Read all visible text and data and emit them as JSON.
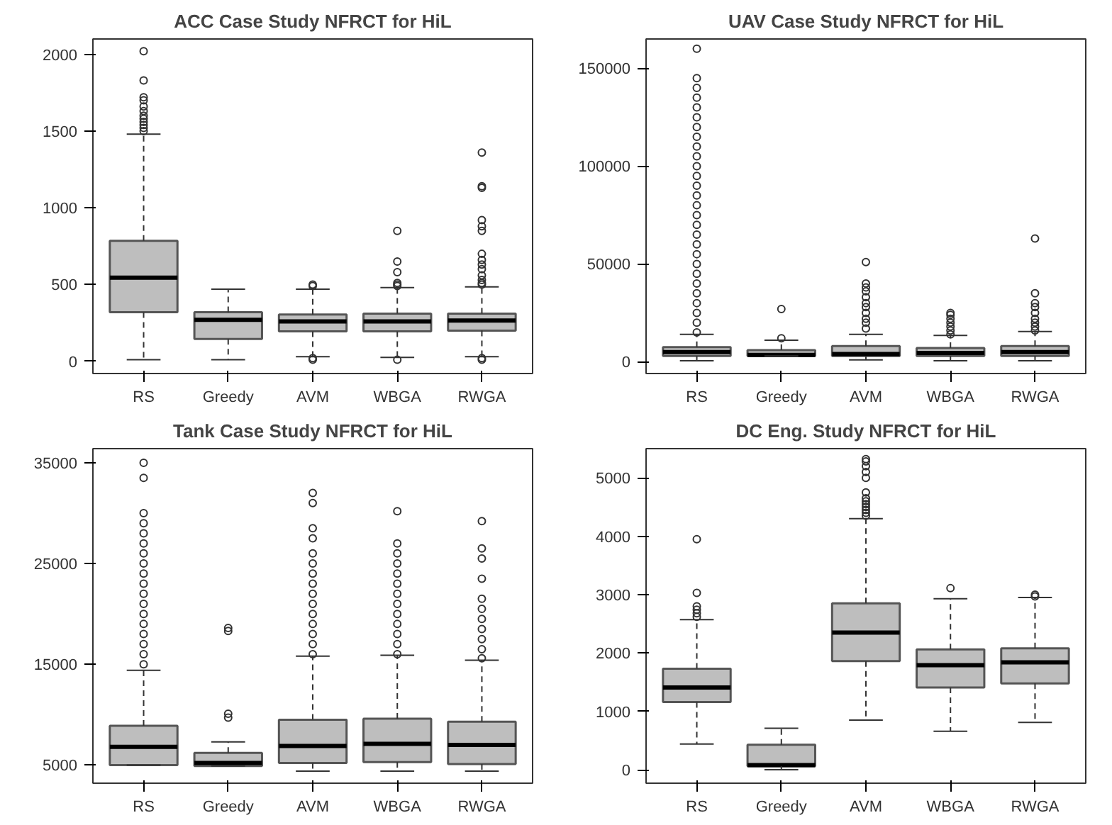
{
  "chart_data": [
    {
      "type": "box",
      "title": "ACC Case Study NFRCT for HiL",
      "categories": [
        "RS",
        "Greedy",
        "AVM",
        "WBGA",
        "RWGA"
      ],
      "color": "#bebebe",
      "ylim": [
        -80,
        2100
      ],
      "yticks": [
        0,
        500,
        1000,
        1500,
        2000
      ],
      "boxes": [
        {
          "low": 10,
          "q1": 320,
          "median": 545,
          "q3": 785,
          "high": 1480,
          "outliers": [
            1500,
            1520,
            1540,
            1560,
            1580,
            1600,
            1630,
            1660,
            1700,
            1720,
            1830,
            2020
          ]
        },
        {
          "low": 10,
          "q1": 145,
          "median": 270,
          "q3": 320,
          "high": 470
        },
        {
          "low": 30,
          "q1": 195,
          "median": 260,
          "q3": 305,
          "high": 470,
          "outliers": [
            10,
            20,
            490,
            500
          ]
        },
        {
          "low": 25,
          "q1": 195,
          "median": 260,
          "q3": 310,
          "high": 480,
          "outliers": [
            10,
            490,
            500,
            510,
            580,
            650,
            850
          ]
        },
        {
          "low": 30,
          "q1": 200,
          "median": 265,
          "q3": 310,
          "high": 485,
          "outliers": [
            10,
            20,
            500,
            510,
            530,
            560,
            600,
            630,
            660,
            700,
            850,
            880,
            920,
            1130,
            1140,
            1360
          ]
        }
      ]
    },
    {
      "type": "box",
      "title": "UAV Case Study NFRCT for HiL",
      "categories": [
        "RS",
        "Greedy",
        "AVM",
        "WBGA",
        "RWGA"
      ],
      "color": "#bebebe",
      "ylim": [
        -6000,
        165000
      ],
      "yticks": [
        0,
        50000,
        100000,
        150000
      ],
      "boxes": [
        {
          "low": 500,
          "q1": 3000,
          "median": 5000,
          "q3": 7500,
          "high": 14000,
          "outliers": [
            15000,
            20000,
            25000,
            30000,
            35000,
            40000,
            45000,
            50000,
            55000,
            60000,
            65000,
            70000,
            75000,
            80000,
            85000,
            90000,
            95000,
            100000,
            105000,
            110000,
            115000,
            120000,
            125000,
            130000,
            135000,
            140000,
            145000,
            160000
          ]
        },
        {
          "low": 3000,
          "q1": 3000,
          "median": 3500,
          "q3": 6000,
          "high": 11000,
          "outliers": [
            12000,
            27000
          ]
        },
        {
          "low": 1000,
          "q1": 3000,
          "median": 4000,
          "q3": 8000,
          "high": 14000,
          "outliers": [
            17000,
            20000,
            22000,
            25000,
            28000,
            30000,
            33000,
            36000,
            38000,
            40000,
            51000
          ]
        },
        {
          "low": 500,
          "q1": 3000,
          "median": 4500,
          "q3": 7000,
          "high": 13500,
          "outliers": [
            14000,
            16000,
            18000,
            20000,
            22000,
            24000,
            25000
          ]
        },
        {
          "low": 500,
          "q1": 3000,
          "median": 5000,
          "q3": 8000,
          "high": 15500,
          "outliers": [
            16000,
            18000,
            20000,
            22000,
            25000,
            28000,
            30000,
            35000,
            63000
          ]
        }
      ]
    },
    {
      "type": "box",
      "title": "Tank Case Study NFRCT for HiL",
      "categories": [
        "RS",
        "Greedy",
        "AVM",
        "WBGA",
        "RWGA"
      ],
      "color": "#bebebe",
      "ylim": [
        3200,
        36400
      ],
      "yticks": [
        5000,
        15000,
        25000,
        35000
      ],
      "boxes": [
        {
          "low": 5000,
          "q1": 5000,
          "median": 6800,
          "q3": 8900,
          "high": 14400,
          "outliers": [
            15000,
            16000,
            17000,
            18000,
            19000,
            20000,
            21000,
            22000,
            23000,
            24000,
            25000,
            26000,
            27000,
            28000,
            29000,
            30000,
            33500,
            35000
          ]
        },
        {
          "low": 4900,
          "q1": 4900,
          "median": 5200,
          "q3": 6200,
          "high": 7300,
          "outliers": [
            9700,
            10100,
            18300,
            18600
          ]
        },
        {
          "low": 4400,
          "q1": 5200,
          "median": 6900,
          "q3": 9500,
          "high": 15800,
          "outliers": [
            16000,
            17000,
            18000,
            19000,
            20000,
            21000,
            22000,
            23000,
            24000,
            25000,
            26000,
            27500,
            28500,
            31000,
            32000
          ]
        },
        {
          "low": 4400,
          "q1": 5300,
          "median": 7100,
          "q3": 9600,
          "high": 15900,
          "outliers": [
            16000,
            17000,
            18000,
            19000,
            20000,
            21000,
            22000,
            23000,
            24000,
            25000,
            26000,
            27000,
            30200
          ]
        },
        {
          "low": 4400,
          "q1": 5100,
          "median": 7000,
          "q3": 9300,
          "high": 15400,
          "outliers": [
            15600,
            16500,
            17500,
            18500,
            19500,
            20500,
            21500,
            23500,
            25500,
            26500,
            29200
          ]
        }
      ]
    },
    {
      "type": "box",
      "title": "DC Eng. Study NFRCT for HiL",
      "categories": [
        "RS",
        "Greedy",
        "AVM",
        "WBGA",
        "RWGA"
      ],
      "color": "#bebebe",
      "ylim": [
        -230,
        5500
      ],
      "yticks": [
        0,
        1000,
        2000,
        3000,
        4000,
        5000
      ],
      "boxes": [
        {
          "low": 440,
          "q1": 1160,
          "median": 1410,
          "q3": 1730,
          "high": 2570,
          "outliers": [
            2620,
            2680,
            2740,
            2800,
            3030,
            3950
          ]
        },
        {
          "low": 0,
          "q1": 60,
          "median": 80,
          "q3": 430,
          "high": 710
        },
        {
          "low": 850,
          "q1": 1860,
          "median": 2350,
          "q3": 2850,
          "high": 4300,
          "outliers": [
            4350,
            4400,
            4450,
            4500,
            4550,
            4600,
            4650,
            4750,
            5000,
            5100,
            5200,
            5280,
            5320
          ]
        },
        {
          "low": 660,
          "q1": 1410,
          "median": 1790,
          "q3": 2060,
          "high": 2930,
          "outliers": [
            3110
          ]
        },
        {
          "low": 810,
          "q1": 1480,
          "median": 1840,
          "q3": 2080,
          "high": 2950,
          "outliers": [
            2970,
            3000
          ]
        }
      ]
    }
  ]
}
